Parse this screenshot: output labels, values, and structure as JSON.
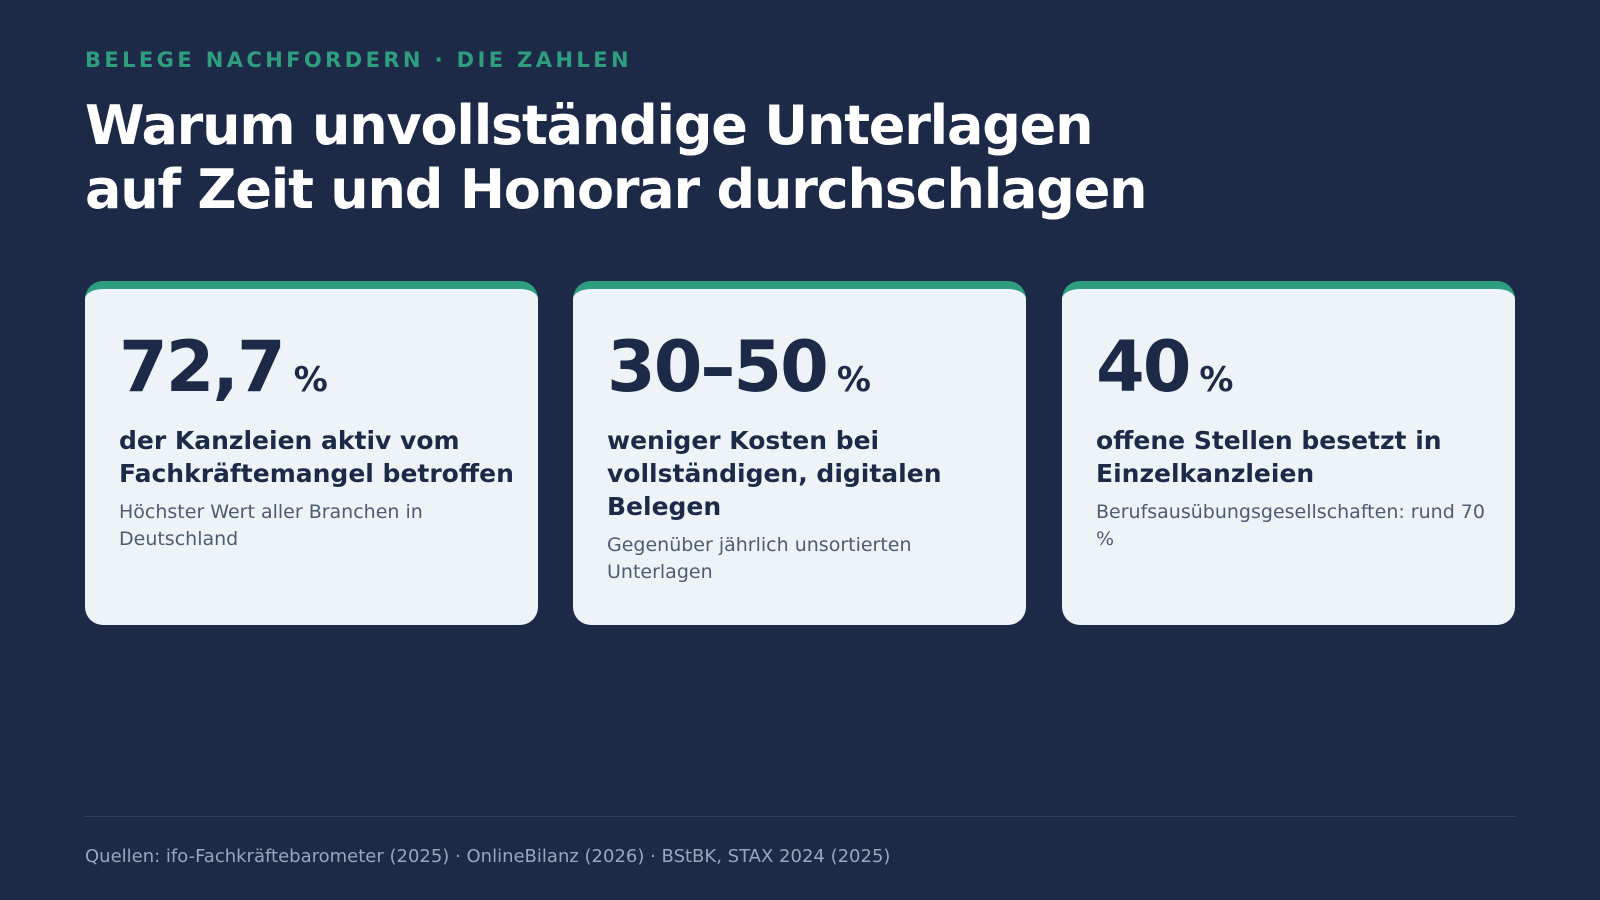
{
  "header": {
    "eyebrow": "BELEGE NACHFORDERN · DIE ZAHLEN",
    "title_line1": "Warum unvollständige Unterlagen",
    "title_line2": "auf Zeit und Honorar durchschlagen"
  },
  "cards": [
    {
      "value": "72,7",
      "unit": "%",
      "label": "der Kanzleien aktiv vom Fachkräftemangel betroffen",
      "note": "Höchster Wert aller Branchen in Deutschland"
    },
    {
      "value": "30–50",
      "unit": "%",
      "label": "weniger Kosten bei vollständigen, digitalen Belegen",
      "note": "Gegenüber jährlich unsortierten Unterlagen"
    },
    {
      "value": "40",
      "unit": "%",
      "label": "offene Stellen besetzt in Einzelkanzleien",
      "note": "Berufsausübungsgesellschaften: rund 70 %"
    }
  ],
  "footer": {
    "sources": "Quellen: ifo-Fachkräftebarometer (2025) · OnlineBilanz (2026) · BStBK, STAX 2024 (2025)"
  },
  "colors": {
    "background": "#1c2a48",
    "accent": "#2e9e7e",
    "card": "#eef3f8"
  }
}
